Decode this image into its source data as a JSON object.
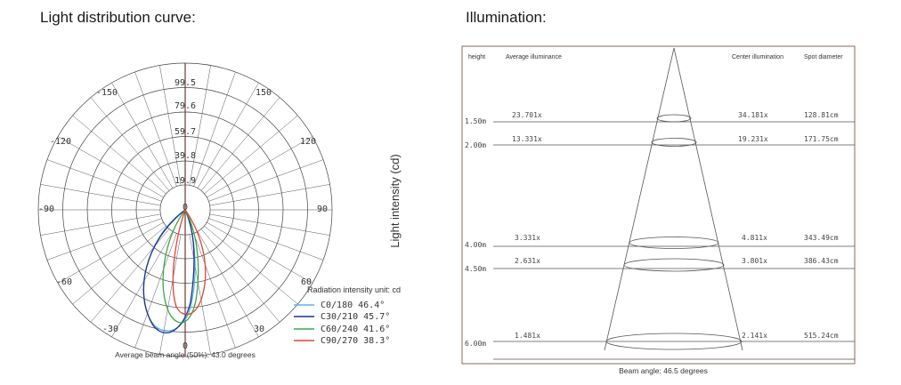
{
  "left_panel": {
    "title": "Light distribution curve:",
    "radial_labels": [
      "99.5",
      "79.6",
      "59.7",
      "39.8",
      "19.9",
      "0"
    ],
    "angle_labels": [
      "-150",
      "150",
      "-120",
      "120",
      "-90",
      "90",
      "-60",
      "60",
      "-30",
      "30",
      "0"
    ],
    "y_axis_label": "Light intensity (cd)",
    "unit_note": "Radiation intensity unit: cd",
    "legend": [
      {
        "label": "C0/180 46.4°",
        "color": "#5ab4e6"
      },
      {
        "label": "C30/210 45.7°",
        "color": "#1f2f8f"
      },
      {
        "label": "C60/240 41.6°",
        "color": "#3aa84a"
      },
      {
        "label": "C90/270 38.3°",
        "color": "#e0453a"
      }
    ],
    "footer": "Average beam angle (50%): 43.0 degrees"
  },
  "right_panel": {
    "title": "Illumination:",
    "headers": {
      "height": "height",
      "average": "Average illuminance",
      "center": "Center illumination",
      "spot": "Spot diameter"
    },
    "rows": [
      {
        "height": "1.50m",
        "average": "23.701x",
        "center": "34.181x",
        "spot": "128.81cm"
      },
      {
        "height": "2.00m",
        "average": "13.331x",
        "center": "19.231x",
        "spot": "171.75cm"
      },
      {
        "height": "4.00m",
        "average": "3.331x",
        "center": "4.811x",
        "spot": "343.49cm"
      },
      {
        "height": "4.50m",
        "average": "2.631x",
        "center": "3.801x",
        "spot": "386.43cm"
      },
      {
        "height": "6.00m",
        "average": "1.481x",
        "center": "2.141x",
        "spot": "515.24cm"
      }
    ],
    "footer": "Beam angle: 46.5 degrees"
  }
}
